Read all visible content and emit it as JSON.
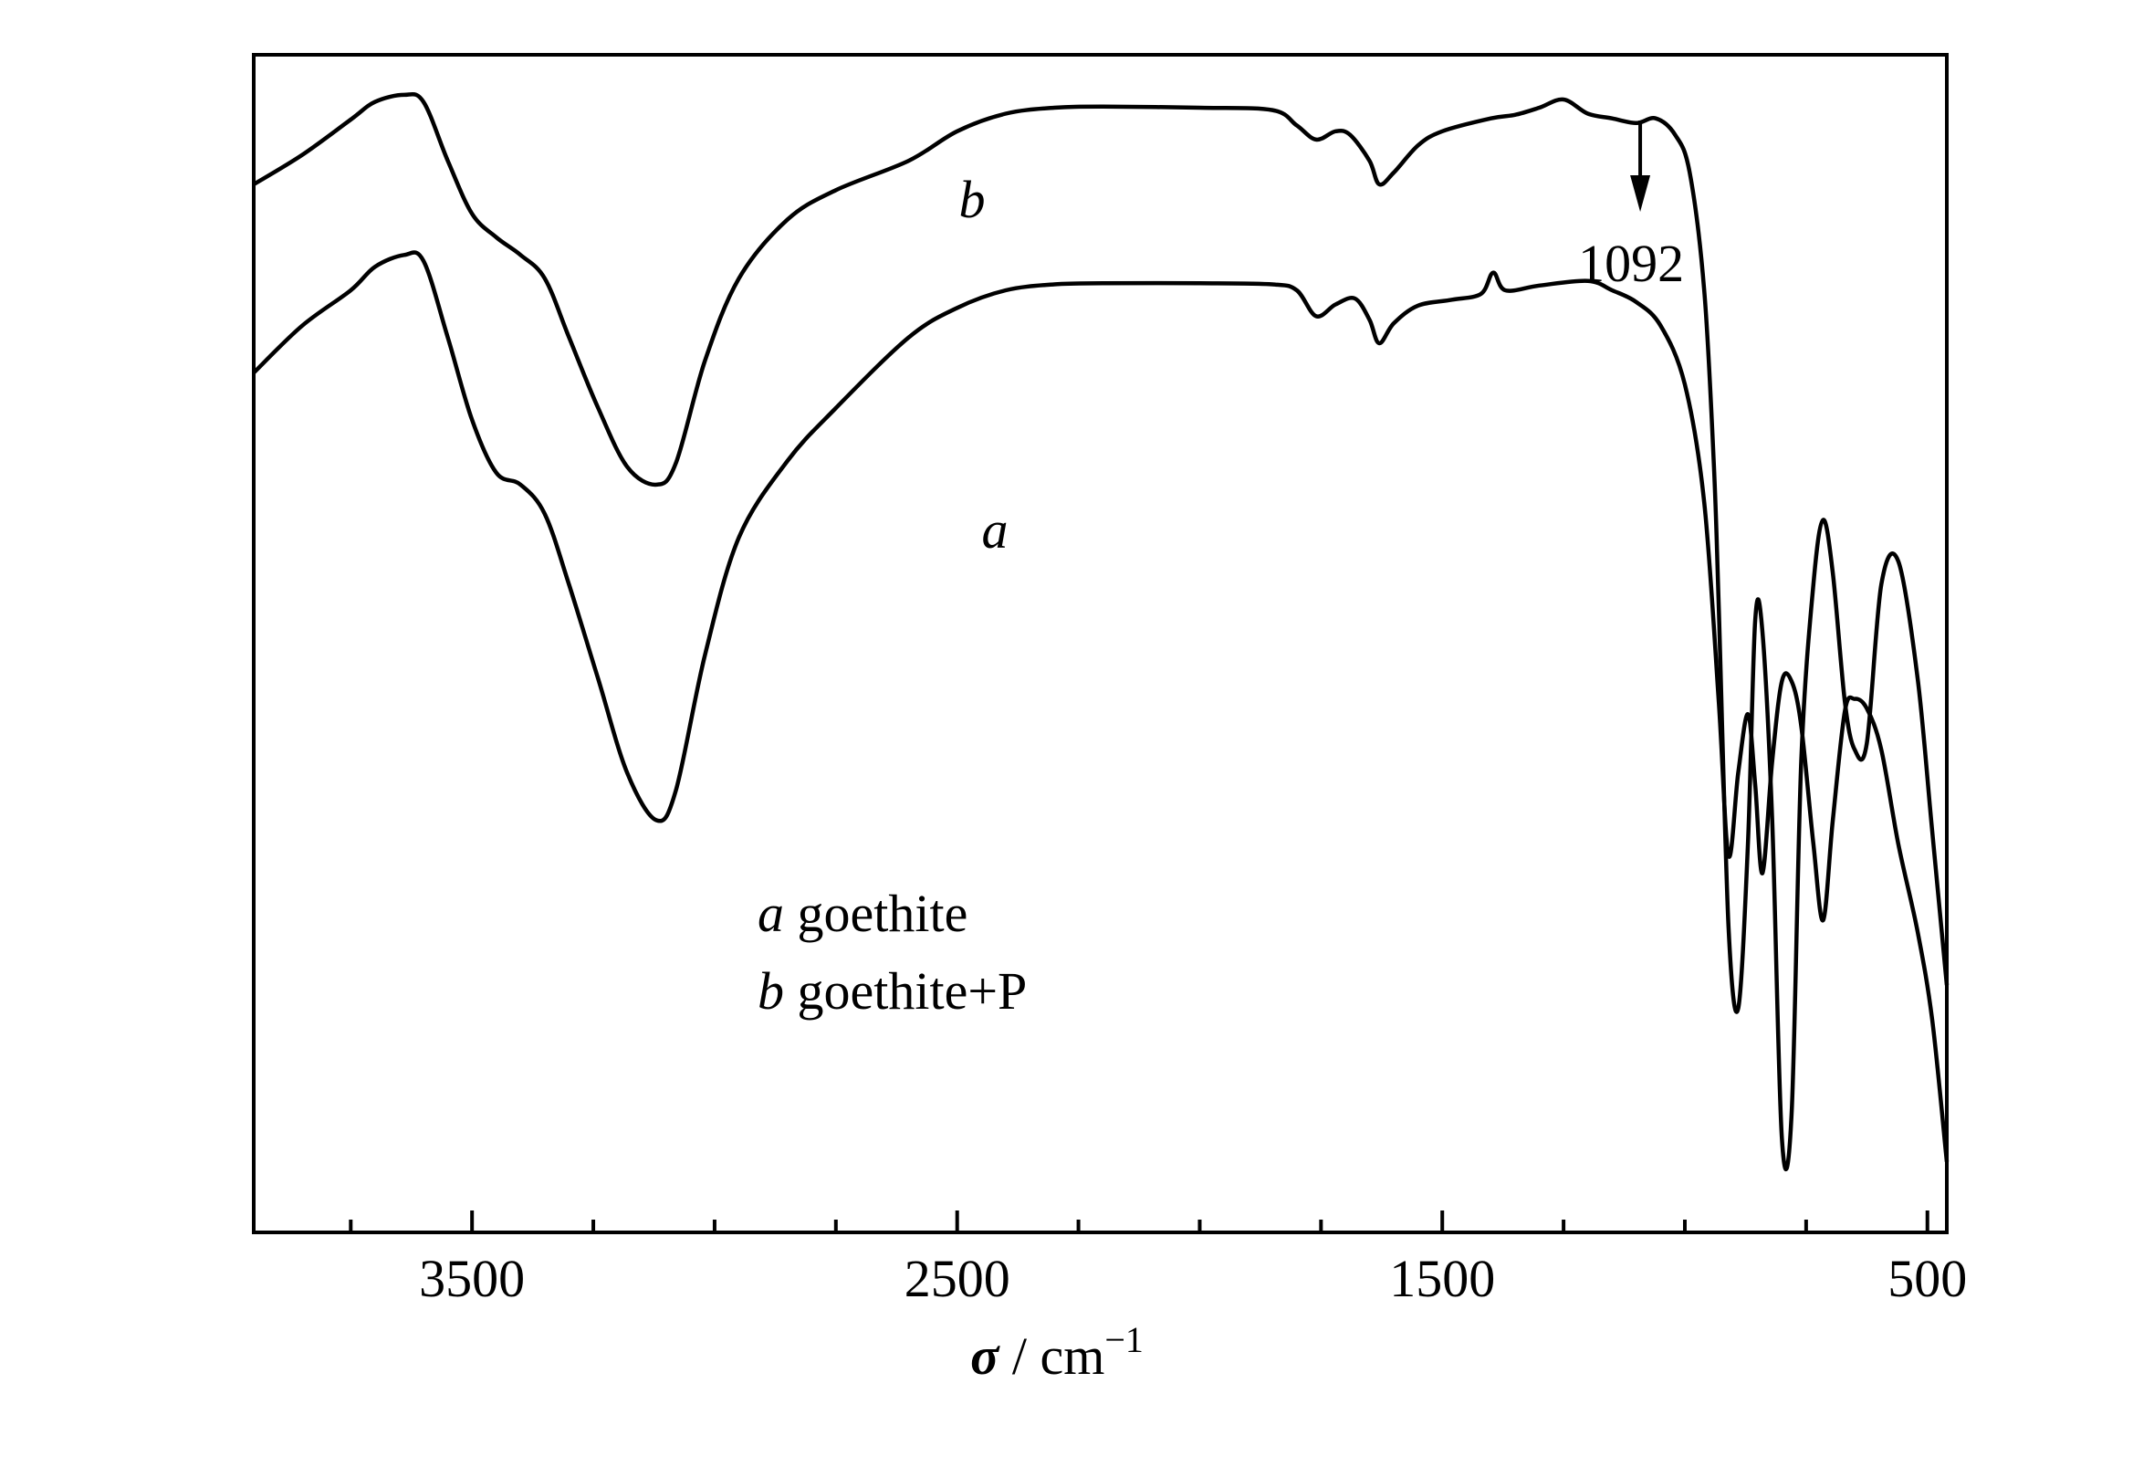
{
  "chart_data": {
    "type": "line",
    "xlabel_symbol": "σ",
    "xlabel_unit": " / cm",
    "xlabel_exp": "−1",
    "xlim": [
      3950,
      460
    ],
    "x_ticks": [
      3500,
      2500,
      1500,
      500
    ],
    "x_minor_step": 250,
    "grid": false,
    "series": [
      {
        "name": "a",
        "points": [
          [
            3950,
            0.73
          ],
          [
            3850,
            0.77
          ],
          [
            3750,
            0.8
          ],
          [
            3700,
            0.82
          ],
          [
            3640,
            0.83
          ],
          [
            3600,
            0.825
          ],
          [
            3550,
            0.76
          ],
          [
            3500,
            0.69
          ],
          [
            3450,
            0.645
          ],
          [
            3400,
            0.635
          ],
          [
            3350,
            0.61
          ],
          [
            3300,
            0.55
          ],
          [
            3240,
            0.47
          ],
          [
            3180,
            0.39
          ],
          [
            3120,
            0.35
          ],
          [
            3080,
            0.375
          ],
          [
            3020,
            0.49
          ],
          [
            2950,
            0.59
          ],
          [
            2850,
            0.655
          ],
          [
            2750,
            0.7
          ],
          [
            2600,
            0.76
          ],
          [
            2500,
            0.785
          ],
          [
            2400,
            0.8
          ],
          [
            2300,
            0.805
          ],
          [
            2200,
            0.806
          ],
          [
            2000,
            0.806
          ],
          [
            1850,
            0.805
          ],
          [
            1800,
            0.8
          ],
          [
            1760,
            0.778
          ],
          [
            1720,
            0.788
          ],
          [
            1680,
            0.793
          ],
          [
            1650,
            0.775
          ],
          [
            1630,
            0.755
          ],
          [
            1600,
            0.772
          ],
          [
            1550,
            0.787
          ],
          [
            1480,
            0.792
          ],
          [
            1420,
            0.797
          ],
          [
            1395,
            0.815
          ],
          [
            1370,
            0.8
          ],
          [
            1300,
            0.804
          ],
          [
            1200,
            0.808
          ],
          [
            1150,
            0.8
          ],
          [
            1100,
            0.79
          ],
          [
            1050,
            0.77
          ],
          [
            1000,
            0.72
          ],
          [
            960,
            0.62
          ],
          [
            930,
            0.45
          ],
          [
            910,
            0.32
          ],
          [
            890,
            0.39
          ],
          [
            870,
            0.44
          ],
          [
            855,
            0.38
          ],
          [
            840,
            0.305
          ],
          [
            820,
            0.4
          ],
          [
            800,
            0.468
          ],
          [
            780,
            0.468
          ],
          [
            760,
            0.43
          ],
          [
            735,
            0.33
          ],
          [
            715,
            0.265
          ],
          [
            695,
            0.35
          ],
          [
            670,
            0.443
          ],
          [
            650,
            0.453
          ],
          [
            625,
            0.445
          ],
          [
            595,
            0.41
          ],
          [
            560,
            0.33
          ],
          [
            520,
            0.255
          ],
          [
            490,
            0.18
          ],
          [
            460,
            0.06
          ]
        ]
      },
      {
        "name": "b",
        "points": [
          [
            3950,
            0.89
          ],
          [
            3850,
            0.915
          ],
          [
            3750,
            0.945
          ],
          [
            3700,
            0.96
          ],
          [
            3640,
            0.966
          ],
          [
            3600,
            0.96
          ],
          [
            3550,
            0.91
          ],
          [
            3500,
            0.865
          ],
          [
            3450,
            0.845
          ],
          [
            3400,
            0.83
          ],
          [
            3350,
            0.81
          ],
          [
            3300,
            0.76
          ],
          [
            3240,
            0.7
          ],
          [
            3180,
            0.65
          ],
          [
            3120,
            0.635
          ],
          [
            3080,
            0.653
          ],
          [
            3020,
            0.74
          ],
          [
            2950,
            0.81
          ],
          [
            2850,
            0.86
          ],
          [
            2750,
            0.885
          ],
          [
            2600,
            0.91
          ],
          [
            2500,
            0.935
          ],
          [
            2400,
            0.95
          ],
          [
            2300,
            0.955
          ],
          [
            2200,
            0.956
          ],
          [
            2000,
            0.955
          ],
          [
            1850,
            0.953
          ],
          [
            1800,
            0.94
          ],
          [
            1760,
            0.928
          ],
          [
            1720,
            0.935
          ],
          [
            1690,
            0.932
          ],
          [
            1650,
            0.91
          ],
          [
            1630,
            0.89
          ],
          [
            1600,
            0.9
          ],
          [
            1550,
            0.923
          ],
          [
            1500,
            0.935
          ],
          [
            1400,
            0.946
          ],
          [
            1350,
            0.949
          ],
          [
            1300,
            0.955
          ],
          [
            1250,
            0.962
          ],
          [
            1200,
            0.95
          ],
          [
            1150,
            0.946
          ],
          [
            1100,
            0.942
          ],
          [
            1060,
            0.946
          ],
          [
            1020,
            0.932
          ],
          [
            990,
            0.9
          ],
          [
            960,
            0.8
          ],
          [
            940,
            0.65
          ],
          [
            930,
            0.53
          ],
          [
            910,
            0.26
          ],
          [
            890,
            0.19
          ],
          [
            870,
            0.33
          ],
          [
            855,
            0.52
          ],
          [
            840,
            0.51
          ],
          [
            820,
            0.35
          ],
          [
            800,
            0.08
          ],
          [
            780,
            0.1
          ],
          [
            760,
            0.4
          ],
          [
            735,
            0.55
          ],
          [
            715,
            0.605
          ],
          [
            695,
            0.56
          ],
          [
            670,
            0.45
          ],
          [
            650,
            0.41
          ],
          [
            625,
            0.415
          ],
          [
            595,
            0.55
          ],
          [
            560,
            0.57
          ],
          [
            520,
            0.47
          ],
          [
            490,
            0.34
          ],
          [
            460,
            0.21
          ]
        ]
      }
    ],
    "curve_labels": [
      "a",
      "b"
    ],
    "annotation": {
      "text": "1092",
      "x": 1092
    },
    "legend": {
      "placement": "center",
      "entries": [
        {
          "key": "a",
          "text": " goethite"
        },
        {
          "key": "b",
          "text": " goethite+P"
        }
      ]
    }
  }
}
